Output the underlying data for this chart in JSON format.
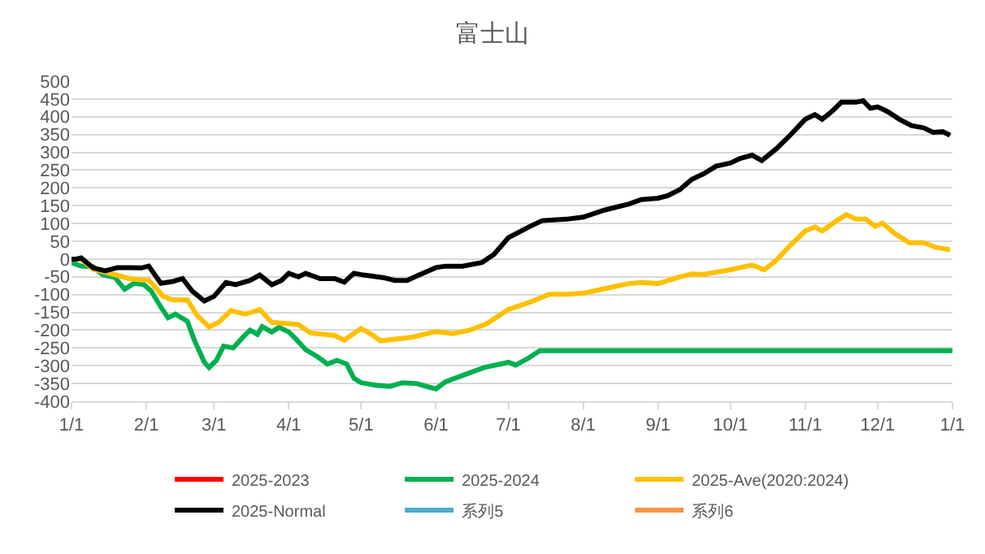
{
  "chart_data": {
    "type": "line",
    "title": "富士山",
    "xlim": [
      "2025-01-01",
      "2026-01-01"
    ],
    "xticks": [
      {
        "value": "2025-01-01",
        "label": "1/1"
      },
      {
        "value": "2025-02-01",
        "label": "2/1"
      },
      {
        "value": "2025-03-01",
        "label": "3/1"
      },
      {
        "value": "2025-04-01",
        "label": "4/1"
      },
      {
        "value": "2025-05-01",
        "label": "5/1"
      },
      {
        "value": "2025-06-01",
        "label": "6/1"
      },
      {
        "value": "2025-07-01",
        "label": "7/1"
      },
      {
        "value": "2025-08-01",
        "label": "8/1"
      },
      {
        "value": "2025-09-01",
        "label": "9/1"
      },
      {
        "value": "2025-10-01",
        "label": "10/1"
      },
      {
        "value": "2025-11-01",
        "label": "11/1"
      },
      {
        "value": "2025-12-01",
        "label": "12/1"
      },
      {
        "value": "2026-01-01",
        "label": "1/1"
      }
    ],
    "ylim": [
      -400,
      500
    ],
    "yticks": [
      -400,
      -350,
      -300,
      -250,
      -200,
      -150,
      -100,
      -50,
      0,
      50,
      100,
      150,
      200,
      250,
      300,
      350,
      400,
      450,
      500
    ],
    "grid": "y",
    "legend": "bottom",
    "marker": "none",
    "line_style": "solid",
    "series": [
      {
        "name": "2025-2023",
        "color": "#ff0000"
      },
      {
        "name": "2025-2024",
        "color": "#00b050",
        "x": [
          "2025-01-01",
          "2025-01-05",
          "2025-01-10",
          "2025-01-14",
          "2025-01-19",
          "2025-01-23",
          "2025-01-27",
          "2025-01-31",
          "2025-02-03",
          "2025-02-07",
          "2025-02-10",
          "2025-02-13",
          "2025-02-18",
          "2025-02-21",
          "2025-02-25",
          "2025-02-27",
          "2025-03-02",
          "2025-03-05",
          "2025-03-09",
          "2025-03-13",
          "2025-03-16",
          "2025-03-19",
          "2025-03-21",
          "2025-03-25",
          "2025-03-28",
          "2025-04-01",
          "2025-04-04",
          "2025-04-08",
          "2025-04-13",
          "2025-04-17",
          "2025-04-21",
          "2025-04-25",
          "2025-04-28",
          "2025-05-01",
          "2025-05-07",
          "2025-05-13",
          "2025-05-18",
          "2025-05-24",
          "2025-05-29",
          "2025-06-01",
          "2025-06-05",
          "2025-06-13",
          "2025-06-21",
          "2025-06-28",
          "2025-07-01",
          "2025-07-04",
          "2025-07-09",
          "2025-07-14",
          "2026-01-01"
        ],
        "values": [
          -10,
          -20,
          -22,
          -45,
          -52,
          -85,
          -68,
          -72,
          -90,
          -135,
          -165,
          -155,
          -175,
          -230,
          -290,
          -305,
          -285,
          -245,
          -250,
          -220,
          -200,
          -212,
          -190,
          -205,
          -192,
          -205,
          -225,
          -255,
          -275,
          -295,
          -285,
          -295,
          -335,
          -348,
          -355,
          -358,
          -348,
          -350,
          -360,
          -365,
          -345,
          -325,
          -305,
          -295,
          -290,
          -298,
          -280,
          -258,
          -258
        ]
      },
      {
        "name": "2025-Ave(2020:2024)",
        "color": "#ffc000",
        "x": [
          "2025-01-01",
          "2025-01-05",
          "2025-01-10",
          "2025-01-15",
          "2025-01-20",
          "2025-01-25",
          "2025-01-30",
          "2025-02-02",
          "2025-02-08",
          "2025-02-12",
          "2025-02-18",
          "2025-02-22",
          "2025-02-27",
          "2025-03-03",
          "2025-03-08",
          "2025-03-14",
          "2025-03-20",
          "2025-03-25",
          "2025-04-01",
          "2025-04-05",
          "2025-04-10",
          "2025-04-20",
          "2025-04-24",
          "2025-05-01",
          "2025-05-06",
          "2025-05-09",
          "2025-05-22",
          "2025-06-01",
          "2025-06-08",
          "2025-06-15",
          "2025-06-22",
          "2025-07-01",
          "2025-07-10",
          "2025-07-18",
          "2025-07-25",
          "2025-08-01",
          "2025-08-10",
          "2025-08-20",
          "2025-08-25",
          "2025-09-01",
          "2025-09-10",
          "2025-09-15",
          "2025-09-20",
          "2025-10-01",
          "2025-10-10",
          "2025-10-15",
          "2025-10-20",
          "2025-10-25",
          "2025-11-01",
          "2025-11-05",
          "2025-11-08",
          "2025-11-15",
          "2025-11-18",
          "2025-11-22",
          "2025-11-26",
          "2025-11-30",
          "2025-12-03",
          "2025-12-08",
          "2025-12-14",
          "2025-12-20",
          "2025-12-25",
          "2025-12-31"
        ],
        "values": [
          0,
          0,
          -29,
          -37,
          -46,
          -55,
          -59,
          -59,
          -105,
          -115,
          -115,
          -158,
          -191,
          -178,
          -145,
          -155,
          -142,
          -178,
          -182,
          -184,
          -208,
          -215,
          -228,
          -195,
          -215,
          -230,
          -220,
          -204,
          -210,
          -200,
          -182,
          -142,
          -121,
          -99,
          -99,
          -96,
          -83,
          -69,
          -66,
          -69,
          -50,
          -42,
          -43,
          -30,
          -17,
          -30,
          -4,
          33,
          79,
          90,
          79,
          112,
          125,
          112,
          112,
          92,
          101,
          72,
          46,
          46,
          33,
          26
        ]
      },
      {
        "name": "2025-Normal",
        "color": "#000000",
        "x": [
          "2025-01-01",
          "2025-01-03",
          "2025-01-05",
          "2025-01-10",
          "2025-01-15",
          "2025-01-20",
          "2025-01-25",
          "2025-01-30",
          "2025-02-02",
          "2025-02-07",
          "2025-02-12",
          "2025-02-16",
          "2025-02-20",
          "2025-02-25",
          "2025-03-01",
          "2025-03-06",
          "2025-03-10",
          "2025-03-16",
          "2025-03-20",
          "2025-03-25",
          "2025-03-29",
          "2025-04-01",
          "2025-04-05",
          "2025-04-08",
          "2025-04-14",
          "2025-04-20",
          "2025-04-24",
          "2025-04-28",
          "2025-05-02",
          "2025-05-10",
          "2025-05-15",
          "2025-05-20",
          "2025-05-25",
          "2025-06-01",
          "2025-06-05",
          "2025-06-12",
          "2025-06-20",
          "2025-06-25",
          "2025-07-01",
          "2025-07-10",
          "2025-07-15",
          "2025-07-25",
          "2025-08-01",
          "2025-08-10",
          "2025-08-20",
          "2025-08-25",
          "2025-09-01",
          "2025-09-05",
          "2025-09-10",
          "2025-09-15",
          "2025-09-20",
          "2025-09-25",
          "2025-10-01",
          "2025-10-05",
          "2025-10-10",
          "2025-10-14",
          "2025-10-20",
          "2025-10-25",
          "2025-11-01",
          "2025-11-05",
          "2025-11-08",
          "2025-11-12",
          "2025-11-16",
          "2025-11-22",
          "2025-11-25",
          "2025-11-28",
          "2025-12-01",
          "2025-12-05",
          "2025-12-10",
          "2025-12-15",
          "2025-12-20",
          "2025-12-24",
          "2025-12-28",
          "2025-12-31"
        ],
        "values": [
          0,
          0,
          3,
          -25,
          -33,
          -24,
          -24,
          -25,
          -20,
          -68,
          -63,
          -55,
          -90,
          -118,
          -105,
          -66,
          -72,
          -60,
          -45,
          -72,
          -60,
          -40,
          -50,
          -40,
          -55,
          -55,
          -65,
          -40,
          -45,
          -52,
          -60,
          -60,
          -45,
          -24,
          -20,
          -20,
          -10,
          13,
          60,
          92,
          108,
          112,
          118,
          138,
          155,
          167,
          171,
          178,
          195,
          224,
          240,
          261,
          270,
          283,
          292,
          277,
          310,
          343,
          393,
          406,
          393,
          415,
          441,
          441,
          445,
          424,
          428,
          415,
          393,
          375,
          369,
          356,
          358,
          348
        ]
      },
      {
        "name": "系列5",
        "color": "#4bacc6"
      },
      {
        "name": "系列6",
        "color": "#f79646"
      }
    ]
  }
}
